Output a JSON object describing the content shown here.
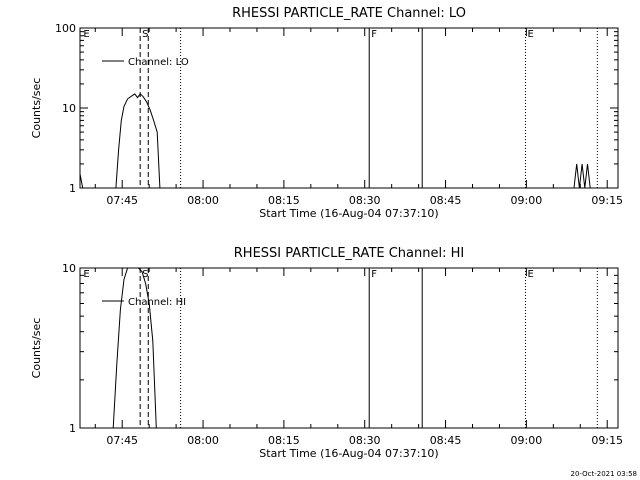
{
  "timestamp": "20-Oct-2021 03:58",
  "chart_data": [
    {
      "type": "line",
      "title": "RHESSI PARTICLE_RATE Channel: LO",
      "xlabel": "Start Time (16-Aug-04 07:37:10)",
      "ylabel": "Counts/sec",
      "yscale": "log",
      "ylim": [
        1,
        100
      ],
      "yticks": [
        {
          "v": 1,
          "label": "1"
        },
        {
          "v": 10,
          "label": "10"
        },
        {
          "v": 100,
          "label": "100"
        }
      ],
      "xlim": [
        "07:37:10",
        "09:17:00"
      ],
      "xticks": [
        "07:45",
        "08:00",
        "08:15",
        "08:30",
        "08:45",
        "09:00",
        "09:15"
      ],
      "legend": {
        "label": "Channel: LO",
        "position": "top-left"
      },
      "series": [
        {
          "name": "Channel: LO",
          "points": [
            [
              "07:37:10",
              1.5
            ],
            [
              "07:37:40",
              1.0
            ],
            [
              "07:43:50",
              1.0
            ],
            [
              "07:44:20",
              3.0
            ],
            [
              "07:44:50",
              7.0
            ],
            [
              "07:45:20",
              10.5
            ],
            [
              "07:46:00",
              13.0
            ],
            [
              "07:46:40",
              14.0
            ],
            [
              "07:47:20",
              15.0
            ],
            [
              "07:47:50",
              13.5
            ],
            [
              "07:48:20",
              15.0
            ],
            [
              "07:48:50",
              14.0
            ],
            [
              "07:49:30",
              12.0
            ],
            [
              "07:50:10",
              9.5
            ],
            [
              "07:50:50",
              7.0
            ],
            [
              "07:51:30",
              5.0
            ],
            [
              "07:52:00",
              1.0
            ]
          ]
        },
        {
          "name": "spikes",
          "points": [
            [
              "09:08:50",
              1.0
            ],
            [
              "09:09:20",
              2.0
            ],
            [
              "09:09:50",
              1.0
            ],
            [
              "09:10:20",
              2.0
            ],
            [
              "09:10:50",
              1.0
            ],
            [
              "09:11:20",
              2.0
            ],
            [
              "09:11:50",
              1.0
            ]
          ]
        }
      ],
      "markers": [
        {
          "t": "07:37:25",
          "label": "E",
          "style": "none"
        },
        {
          "t": "07:48:20",
          "label": "S",
          "style": "dashed"
        },
        {
          "t": "07:49:50",
          "label": "",
          "style": "dashed"
        },
        {
          "t": "07:55:50",
          "label": "",
          "style": "dotted"
        },
        {
          "t": "08:30:50",
          "label": "F",
          "style": "solid"
        },
        {
          "t": "08:40:40",
          "label": "",
          "style": "solid"
        },
        {
          "t": "08:59:50",
          "label": "E",
          "style": "dotted"
        },
        {
          "t": "09:13:10",
          "label": "",
          "style": "dotted"
        }
      ]
    },
    {
      "type": "line",
      "title": "RHESSI PARTICLE_RATE Channel: HI",
      "xlabel": "Start Time (16-Aug-04 07:37:10)",
      "ylabel": "Counts/sec",
      "yscale": "log",
      "ylim": [
        1,
        10
      ],
      "yticks": [
        {
          "v": 1,
          "label": "1"
        },
        {
          "v": 10,
          "label": "10"
        }
      ],
      "xlim": [
        "07:37:10",
        "09:17:00"
      ],
      "xticks": [
        "07:45",
        "08:00",
        "08:15",
        "08:30",
        "08:45",
        "09:00",
        "09:15"
      ],
      "legend": {
        "label": "Channel: HI",
        "position": "top-left"
      },
      "series": [
        {
          "name": "Channel: HI",
          "points": [
            [
              "07:43:20",
              1.0
            ],
            [
              "07:44:00",
              2.5
            ],
            [
              "07:44:40",
              5.5
            ],
            [
              "07:45:20",
              8.5
            ],
            [
              "07:46:00",
              10.5
            ],
            [
              "07:46:40",
              10.0
            ],
            [
              "07:47:20",
              11.0
            ],
            [
              "07:48:00",
              10.0
            ],
            [
              "07:48:40",
              9.5
            ],
            [
              "07:49:20",
              8.0
            ],
            [
              "07:50:00",
              6.0
            ],
            [
              "07:50:40",
              3.5
            ],
            [
              "07:51:20",
              1.0
            ]
          ]
        }
      ],
      "markers": [
        {
          "t": "07:37:25",
          "label": "E",
          "style": "none"
        },
        {
          "t": "07:48:20",
          "label": "S",
          "style": "dashed"
        },
        {
          "t": "07:49:50",
          "label": "",
          "style": "dashed"
        },
        {
          "t": "07:55:50",
          "label": "",
          "style": "dotted"
        },
        {
          "t": "08:30:50",
          "label": "F",
          "style": "solid"
        },
        {
          "t": "08:40:40",
          "label": "",
          "style": "solid"
        },
        {
          "t": "08:59:50",
          "label": "E",
          "style": "dotted"
        },
        {
          "t": "09:13:10",
          "label": "",
          "style": "dotted"
        }
      ]
    }
  ]
}
